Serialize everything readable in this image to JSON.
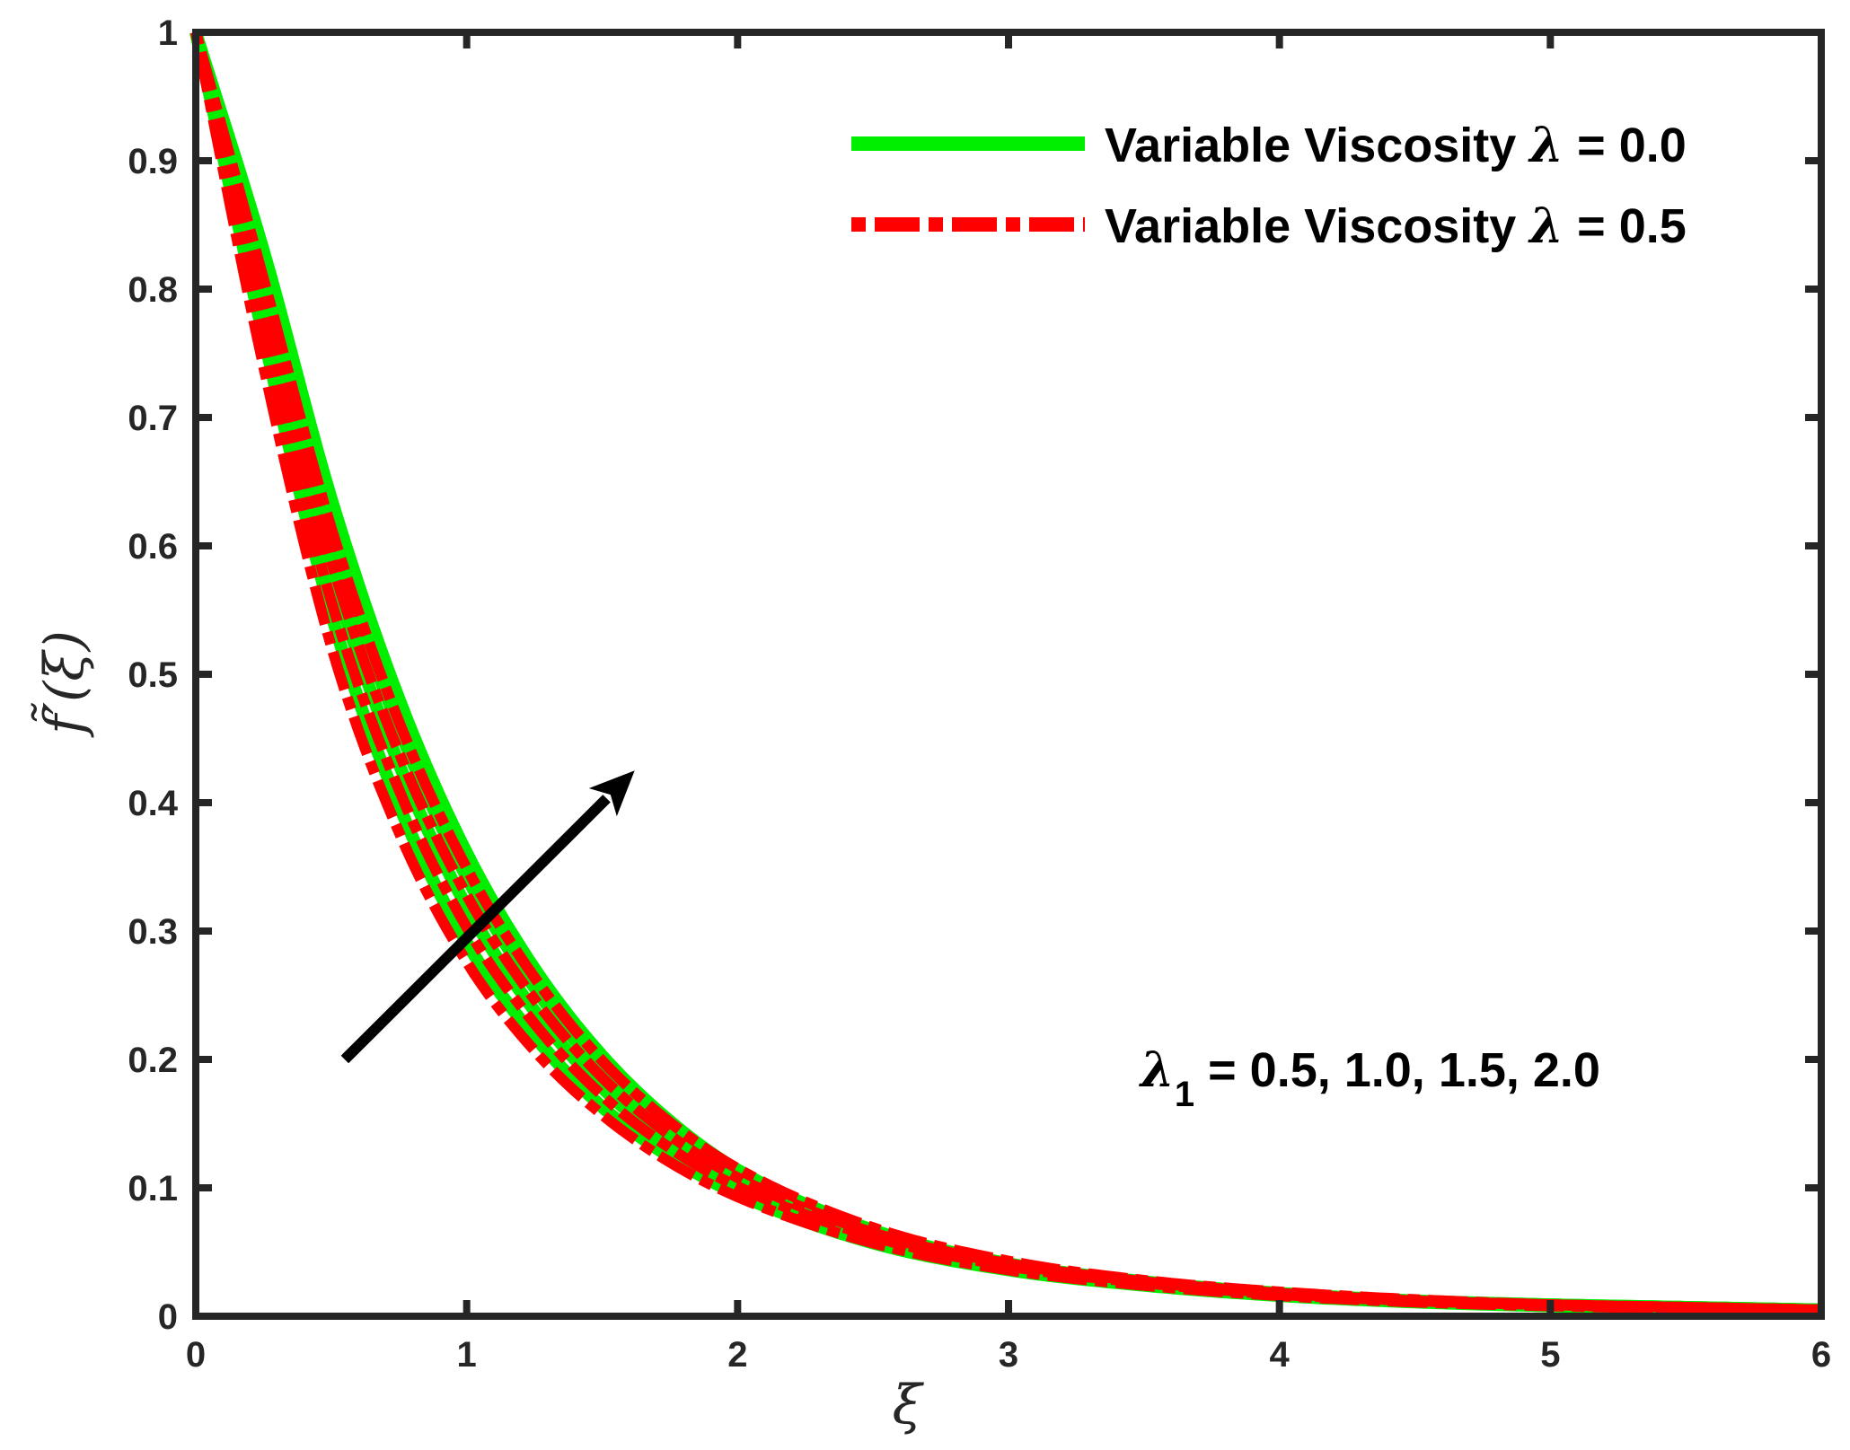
{
  "chart_data": {
    "type": "line",
    "title": "",
    "xlabel": "ξ",
    "ylabel": "f̃′(ξ)",
    "xlim": [
      0,
      6
    ],
    "ylim": [
      0,
      1
    ],
    "xticks": [
      "0",
      "1",
      "2",
      "3",
      "4",
      "5",
      "6"
    ],
    "yticks": [
      "0",
      "0.1",
      "0.2",
      "0.3",
      "0.4",
      "0.5",
      "0.6",
      "0.7",
      "0.8",
      "0.9",
      "1"
    ],
    "grid": false,
    "legend": {
      "position": "top-right",
      "entries": [
        {
          "prefix": "Variable Viscosity ",
          "symbol": "λ",
          "suffix": " = 0.0"
        },
        {
          "prefix": "Variable Viscosity ",
          "symbol": "λ",
          "suffix": " = 0.5"
        }
      ]
    },
    "annotation": {
      "symbol": "λ",
      "subscript": "1",
      "text": " = 0.5, 1.0, 1.5, 2.0"
    },
    "arrow": {
      "from": [
        0.55,
        0.2
      ],
      "to": [
        1.62,
        0.425
      ],
      "meaning": "increasing λ1"
    },
    "colors": {
      "lambda0": "#00ee00",
      "lambda05": "#ff0000",
      "axis": "#262626",
      "arrow": "#000000"
    },
    "lambda1_values": [
      0.5,
      1.0,
      1.5,
      2.0
    ],
    "x": [
      0,
      0.25,
      0.5,
      0.75,
      1,
      1.25,
      1.5,
      1.75,
      2,
      2.5,
      3,
      3.5,
      4,
      4.5,
      5,
      5.5,
      6
    ],
    "series": [
      {
        "name": "λ = 0.0, λ1 = 0.5",
        "group": "lambda0",
        "values": [
          1,
          0.763,
          0.547,
          0.398,
          0.291,
          0.218,
          0.163,
          0.124,
          0.095,
          0.057,
          0.036,
          0.024,
          0.016,
          0.011,
          0.008,
          0.006,
          0.005
        ]
      },
      {
        "name": "λ = 0.0, λ1 = 1.0",
        "group": "lambda0",
        "values": [
          1,
          0.787,
          0.58,
          0.43,
          0.319,
          0.238,
          0.178,
          0.134,
          0.101,
          0.061,
          0.038,
          0.025,
          0.017,
          0.012,
          0.008,
          0.006,
          0.005
        ]
      },
      {
        "name": "λ = 0.0, λ1 = 1.5",
        "group": "lambda0",
        "values": [
          1,
          0.81,
          0.61,
          0.458,
          0.342,
          0.256,
          0.191,
          0.143,
          0.108,
          0.064,
          0.04,
          0.026,
          0.017,
          0.012,
          0.009,
          0.007,
          0.005
        ]
      },
      {
        "name": "λ = 0.0, λ1 = 2.0",
        "group": "lambda0",
        "values": [
          1,
          0.83,
          0.637,
          0.481,
          0.361,
          0.271,
          0.203,
          0.152,
          0.114,
          0.067,
          0.041,
          0.027,
          0.018,
          0.012,
          0.009,
          0.007,
          0.005
        ]
      },
      {
        "name": "λ = 0.5, λ1 = 0.5",
        "group": "lambda05",
        "values": [
          1,
          0.74,
          0.522,
          0.377,
          0.276,
          0.207,
          0.157,
          0.12,
          0.093,
          0.057,
          0.036,
          0.024,
          0.016,
          0.011,
          0.008,
          0.006,
          0.005
        ]
      },
      {
        "name": "λ = 0.5, λ1 = 1.0",
        "group": "lambda05",
        "values": [
          1,
          0.765,
          0.557,
          0.41,
          0.303,
          0.228,
          0.172,
          0.131,
          0.101,
          0.062,
          0.039,
          0.026,
          0.017,
          0.012,
          0.009,
          0.006,
          0.005
        ]
      },
      {
        "name": "λ = 0.5, λ1 = 1.5",
        "group": "lambda05",
        "values": [
          1,
          0.788,
          0.588,
          0.439,
          0.328,
          0.247,
          0.186,
          0.141,
          0.108,
          0.065,
          0.041,
          0.027,
          0.018,
          0.012,
          0.009,
          0.007,
          0.005
        ]
      },
      {
        "name": "λ = 0.5, λ1 = 2.0",
        "group": "lambda05",
        "values": [
          1,
          0.808,
          0.614,
          0.463,
          0.349,
          0.264,
          0.199,
          0.151,
          0.115,
          0.069,
          0.043,
          0.028,
          0.019,
          0.013,
          0.009,
          0.007,
          0.005
        ]
      }
    ]
  }
}
